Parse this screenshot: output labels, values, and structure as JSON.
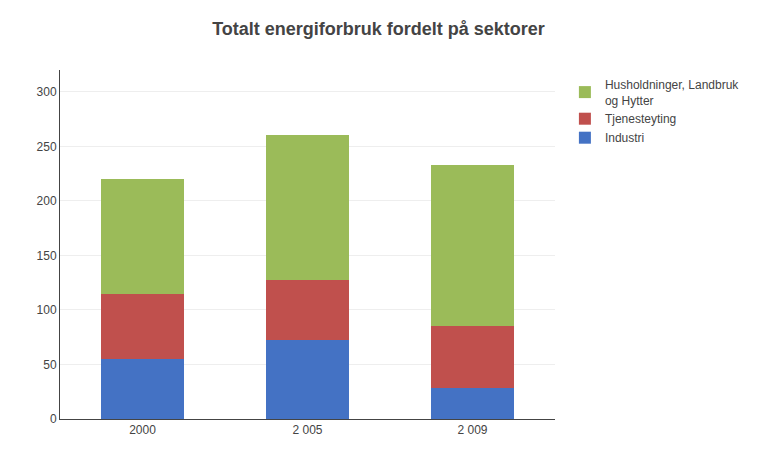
{
  "chart_data": {
    "type": "bar",
    "stacked": true,
    "title": "Totalt energiforbruk fordelt på sektorer",
    "categories": [
      "2000",
      "2 005",
      "2 009"
    ],
    "series": [
      {
        "name": "Industri",
        "color": "#4472C4",
        "values": [
          55,
          72,
          28
        ]
      },
      {
        "name": "Tjenesteyting",
        "color": "#C0504D",
        "values": [
          60,
          55,
          57
        ]
      },
      {
        "name": "Husholdninger, Landbruk\nog Hytter",
        "color": "#9BBB59",
        "values": [
          105,
          133,
          148
        ]
      }
    ],
    "ylim": [
      0,
      320
    ],
    "yticks": [
      0,
      50,
      100,
      150,
      200,
      250,
      300
    ],
    "grid": true,
    "legend": "upper right"
  }
}
